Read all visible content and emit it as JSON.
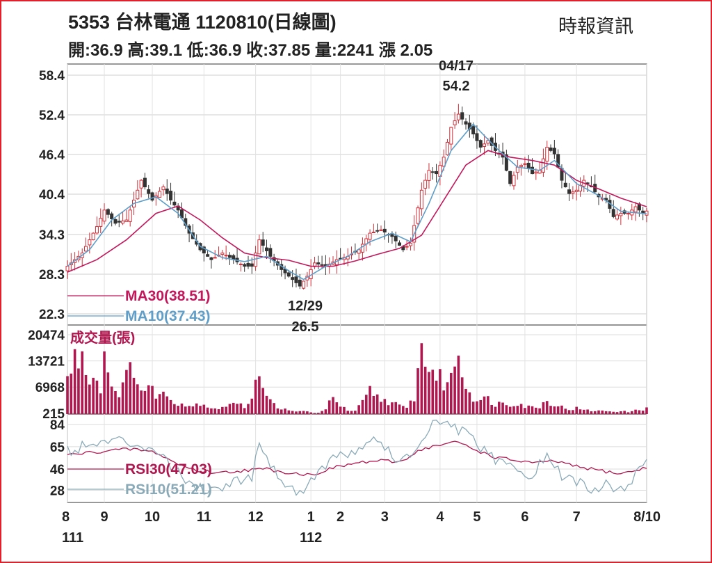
{
  "header": {
    "title": "5353  台林電通 1120810(日線圖)",
    "source": "時報資訊",
    "quote": "開:36.9 高:39.1 低:36.9 收:37.85 量:2241 漲 2.05"
  },
  "colors": {
    "up": "#d0303a",
    "down": "#333333",
    "ma30": "#c2185b",
    "ma10": "#5f9ec8",
    "rsi30": "#b0174f",
    "rsi10": "#8aaab8",
    "volume": "#b0174f",
    "frame": "#e0202a"
  },
  "chart_data": [
    {
      "type": "candlestick",
      "name": "price",
      "yticks": [
        58.4,
        52.4,
        46.4,
        40.4,
        34.3,
        28.3,
        22.3
      ],
      "ylim": [
        22.3,
        58.4
      ],
      "grid": true,
      "legend": [
        {
          "label": "MA30(38.51)",
          "color": "#c2185b"
        },
        {
          "label": "MA10(37.43)",
          "color": "#5f9ec8"
        }
      ],
      "annotations": [
        {
          "date_label": "04/17",
          "value_label": "54.2",
          "value": 54.2
        },
        {
          "date_label": "12/29",
          "value_label": "26.5",
          "value": 26.5
        }
      ],
      "close_path": [
        [
          0,
          29.5
        ],
        [
          4,
          31.5
        ],
        [
          8,
          35.5
        ],
        [
          10,
          38
        ],
        [
          13,
          36
        ],
        [
          16,
          36.5
        ],
        [
          18,
          39.5
        ],
        [
          20,
          42.5
        ],
        [
          23,
          39.5
        ],
        [
          26,
          41.5
        ],
        [
          28,
          39.5
        ],
        [
          30,
          38
        ],
        [
          33,
          34.5
        ],
        [
          36,
          32
        ],
        [
          39,
          30.5
        ],
        [
          42,
          31.5
        ],
        [
          45,
          30.5
        ],
        [
          48,
          29.5
        ],
        [
          50,
          29.5
        ],
        [
          52,
          33.5
        ],
        [
          55,
          31
        ],
        [
          58,
          29
        ],
        [
          61,
          27.5
        ],
        [
          63,
          26.5
        ],
        [
          65,
          28
        ],
        [
          67,
          30
        ],
        [
          70,
          29.5
        ],
        [
          73,
          30.5
        ],
        [
          76,
          31
        ],
        [
          79,
          32
        ],
        [
          82,
          34.5
        ],
        [
          85,
          35
        ],
        [
          88,
          34
        ],
        [
          91,
          32
        ],
        [
          93,
          33
        ],
        [
          96,
          41
        ],
        [
          98,
          44
        ],
        [
          100,
          43.5
        ],
        [
          102,
          46
        ],
        [
          104,
          50.5
        ],
        [
          106,
          52.5
        ],
        [
          108,
          51
        ],
        [
          110,
          49.5
        ],
        [
          112,
          47.5
        ],
        [
          114,
          48.5
        ],
        [
          116,
          47
        ],
        [
          118,
          46
        ],
        [
          120,
          42
        ],
        [
          122,
          44.5
        ],
        [
          124,
          45
        ],
        [
          126,
          43.5
        ],
        [
          128,
          44
        ],
        [
          130,
          47.5
        ],
        [
          132,
          46.5
        ],
        [
          134,
          42.5
        ],
        [
          136,
          40.5
        ],
        [
          138,
          41
        ],
        [
          140,
          42.5
        ],
        [
          142,
          41.5
        ],
        [
          144,
          40
        ],
        [
          146,
          39.5
        ],
        [
          148,
          37
        ],
        [
          150,
          37.5
        ],
        [
          152,
          37.5
        ],
        [
          154,
          38.5
        ],
        [
          156,
          37.5
        ],
        [
          157,
          37.85
        ]
      ],
      "series": [
        {
          "name": "MA30",
          "points": [
            [
              0,
              28.6
            ],
            [
              8,
              30.5
            ],
            [
              16,
              33.5
            ],
            [
              24,
              37.5
            ],
            [
              30,
              38.6
            ],
            [
              36,
              36.5
            ],
            [
              42,
              33.8
            ],
            [
              48,
              31.5
            ],
            [
              54,
              30.8
            ],
            [
              60,
              30.4
            ],
            [
              66,
              29.5
            ],
            [
              72,
              29.5
            ],
            [
              78,
              30.3
            ],
            [
              84,
              31.3
            ],
            [
              90,
              32.2
            ],
            [
              96,
              34.2
            ],
            [
              102,
              39.5
            ],
            [
              108,
              44.8
            ],
            [
              114,
              47
            ],
            [
              120,
              46
            ],
            [
              126,
              45.5
            ],
            [
              132,
              44.8
            ],
            [
              138,
              42.5
            ],
            [
              144,
              41.2
            ],
            [
              150,
              39.8
            ],
            [
              157,
              38.51
            ]
          ]
        },
        {
          "name": "MA10",
          "points": [
            [
              0,
              29.5
            ],
            [
              6,
              32
            ],
            [
              12,
              36.5
            ],
            [
              18,
              39
            ],
            [
              24,
              40
            ],
            [
              30,
              37.5
            ],
            [
              36,
              32.5
            ],
            [
              42,
              30.8
            ],
            [
              48,
              30.2
            ],
            [
              54,
              31
            ],
            [
              60,
              28.8
            ],
            [
              64,
              27.5
            ],
            [
              70,
              29.5
            ],
            [
              76,
              31
            ],
            [
              82,
              33.2
            ],
            [
              88,
              34.5
            ],
            [
              93,
              33.2
            ],
            [
              98,
              39
            ],
            [
              104,
              47
            ],
            [
              110,
              51
            ],
            [
              116,
              47.5
            ],
            [
              122,
              44.5
            ],
            [
              128,
              44
            ],
            [
              132,
              45.5
            ],
            [
              138,
              42
            ],
            [
              144,
              40.2
            ],
            [
              150,
              37.8
            ],
            [
              157,
              37.43
            ]
          ]
        }
      ]
    },
    {
      "type": "bar",
      "name": "volume",
      "label": "成交量(張)",
      "yticks": [
        20474,
        13721,
        6968,
        215
      ],
      "ylim": [
        0,
        20474
      ],
      "volume_path": [
        [
          0,
          9000
        ],
        [
          2,
          14000
        ],
        [
          4,
          15500
        ],
        [
          5,
          11000
        ],
        [
          7,
          10000
        ],
        [
          9,
          7000
        ],
        [
          10,
          15500
        ],
        [
          11,
          13000
        ],
        [
          12,
          7000
        ],
        [
          14,
          6000
        ],
        [
          16,
          9000
        ],
        [
          17,
          11000
        ],
        [
          18,
          13000
        ],
        [
          20,
          6000
        ],
        [
          22,
          6500
        ],
        [
          24,
          5500
        ],
        [
          26,
          5000
        ],
        [
          28,
          4000
        ],
        [
          30,
          3000
        ],
        [
          32,
          2500
        ],
        [
          34,
          2000
        ],
        [
          36,
          3000
        ],
        [
          38,
          2000
        ],
        [
          40,
          1500
        ],
        [
          42,
          1500
        ],
        [
          44,
          3000
        ],
        [
          46,
          2500
        ],
        [
          48,
          1800
        ],
        [
          50,
          5000
        ],
        [
          52,
          12000
        ],
        [
          54,
          4000
        ],
        [
          56,
          2500
        ],
        [
          58,
          1500
        ],
        [
          60,
          800
        ],
        [
          62,
          600
        ],
        [
          64,
          900
        ],
        [
          66,
          400
        ],
        [
          68,
          300
        ],
        [
          70,
          1000
        ],
        [
          72,
          5500
        ],
        [
          74,
          2000
        ],
        [
          76,
          900
        ],
        [
          78,
          700
        ],
        [
          80,
          3000
        ],
        [
          82,
          6000
        ],
        [
          84,
          4500
        ],
        [
          86,
          3500
        ],
        [
          88,
          3000
        ],
        [
          90,
          2000
        ],
        [
          92,
          1500
        ],
        [
          94,
          4500
        ],
        [
          96,
          17000
        ],
        [
          98,
          12000
        ],
        [
          100,
          10000
        ],
        [
          102,
          8000
        ],
        [
          104,
          9000
        ],
        [
          106,
          17000
        ],
        [
          108,
          7000
        ],
        [
          110,
          4500
        ],
        [
          112,
          3500
        ],
        [
          114,
          4000
        ],
        [
          116,
          2500
        ],
        [
          118,
          3000
        ],
        [
          120,
          2500
        ],
        [
          122,
          3000
        ],
        [
          124,
          2000
        ],
        [
          126,
          1800
        ],
        [
          128,
          2000
        ],
        [
          130,
          3500
        ],
        [
          132,
          2500
        ],
        [
          134,
          1800
        ],
        [
          136,
          1200
        ],
        [
          138,
          1500
        ],
        [
          140,
          1000
        ],
        [
          142,
          900
        ],
        [
          144,
          800
        ],
        [
          146,
          800
        ],
        [
          148,
          700
        ],
        [
          150,
          700
        ],
        [
          152,
          600
        ],
        [
          154,
          900
        ],
        [
          156,
          1200
        ],
        [
          157,
          2241
        ]
      ]
    },
    {
      "type": "line",
      "name": "rsi",
      "yticks": [
        84,
        65,
        46,
        28
      ],
      "ylim": [
        20,
        88
      ],
      "legend": [
        {
          "label": "RSI30(47.03)",
          "color": "#b0174f"
        },
        {
          "label": "RSI10(51.21)",
          "color": "#8aaab8"
        }
      ],
      "series": [
        {
          "name": "RSI30",
          "points": [
            [
              0,
              58
            ],
            [
              6,
              60
            ],
            [
              12,
              62
            ],
            [
              18,
              63
            ],
            [
              24,
              60
            ],
            [
              30,
              50
            ],
            [
              36,
              44
            ],
            [
              42,
              43
            ],
            [
              48,
              45
            ],
            [
              54,
              46
            ],
            [
              60,
              43
            ],
            [
              66,
              41
            ],
            [
              72,
              47
            ],
            [
              78,
              51
            ],
            [
              84,
              53
            ],
            [
              90,
              52
            ],
            [
              96,
              63
            ],
            [
              102,
              67
            ],
            [
              106,
              69
            ],
            [
              110,
              63
            ],
            [
              116,
              56
            ],
            [
              122,
              53
            ],
            [
              128,
              51
            ],
            [
              132,
              53
            ],
            [
              138,
              48
            ],
            [
              144,
              45
            ],
            [
              150,
              42
            ],
            [
              157,
              47.03
            ]
          ]
        },
        {
          "name": "RSI10",
          "points": [
            [
              0,
              62
            ],
            [
              6,
              66
            ],
            [
              12,
              70
            ],
            [
              18,
              68
            ],
            [
              24,
              64
            ],
            [
              30,
              42
            ],
            [
              36,
              30
            ],
            [
              40,
              28
            ],
            [
              44,
              35
            ],
            [
              50,
              40
            ],
            [
              52,
              70
            ],
            [
              56,
              45
            ],
            [
              60,
              30
            ],
            [
              64,
              27
            ],
            [
              68,
              45
            ],
            [
              72,
              55
            ],
            [
              78,
              60
            ],
            [
              82,
              72
            ],
            [
              86,
              65
            ],
            [
              90,
              50
            ],
            [
              94,
              60
            ],
            [
              98,
              82
            ],
            [
              102,
              84
            ],
            [
              106,
              80
            ],
            [
              110,
              70
            ],
            [
              114,
              58
            ],
            [
              118,
              50
            ],
            [
              122,
              45
            ],
            [
              126,
              40
            ],
            [
              130,
              58
            ],
            [
              134,
              40
            ],
            [
              138,
              35
            ],
            [
              142,
              30
            ],
            [
              146,
              32
            ],
            [
              150,
              28
            ],
            [
              154,
              40
            ],
            [
              157,
              51.21
            ]
          ]
        }
      ]
    }
  ],
  "x_axis": {
    "max_index": 157,
    "ticks": [
      {
        "label": "8",
        "idx": 0
      },
      {
        "label": "9",
        "idx": 10
      },
      {
        "label": "10",
        "idx": 23
      },
      {
        "label": "11",
        "idx": 37
      },
      {
        "label": "12",
        "idx": 51
      },
      {
        "label": "1",
        "idx": 66
      },
      {
        "label": "2",
        "idx": 74
      },
      {
        "label": "3",
        "idx": 86
      },
      {
        "label": "4",
        "idx": 101
      },
      {
        "label": "5",
        "idx": 111
      },
      {
        "label": "6",
        "idx": 124
      },
      {
        "label": "7",
        "idx": 138
      },
      {
        "label": "8/10",
        "idx": 157
      }
    ],
    "year_labels": [
      {
        "label": "111",
        "idx": 0
      },
      {
        "label": "112",
        "idx": 66
      }
    ]
  }
}
